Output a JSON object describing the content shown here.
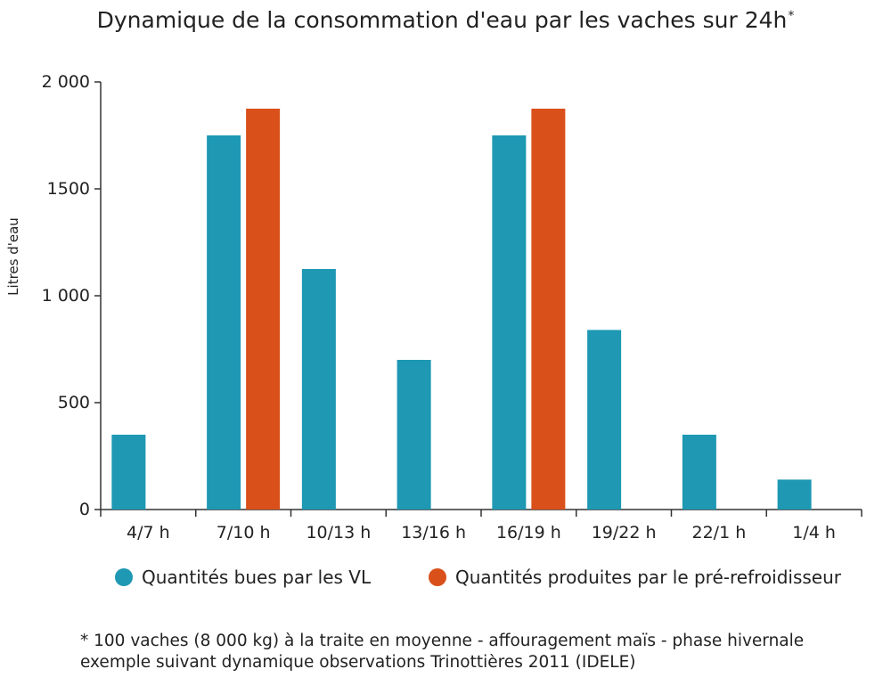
{
  "title": "Dynamique de la consommation d'eau par les vaches sur 24h",
  "title_mark": "*",
  "chart_data": {
    "type": "bar",
    "title": "Dynamique de la consommation d'eau par les vaches sur 24h*",
    "xlabel": "",
    "ylabel": "Litres d'eau",
    "ylim": [
      0,
      2000
    ],
    "yticks": [
      0,
      500,
      1000,
      1500,
      2000
    ],
    "ytick_labels": [
      "0",
      "500",
      "1 000",
      "1500",
      "2 000"
    ],
    "categories": [
      "4/7 h",
      "7/10 h",
      "10/13 h",
      "13/16 h",
      "16/19 h",
      "19/22 h",
      "22/1 h",
      "1/4 h"
    ],
    "series": [
      {
        "name": "Quantités bues par les VL",
        "color": "#1e98b3",
        "values": [
          350,
          1750,
          1125,
          700,
          1750,
          840,
          350,
          140
        ]
      },
      {
        "name": "Quantités produites par le pré-refroidisseur",
        "color": "#d9501a",
        "values": [
          null,
          1875,
          null,
          null,
          1875,
          null,
          null,
          null
        ]
      }
    ],
    "legend_position": "bottom",
    "grid": false
  },
  "footnote": {
    "line1": "* 100 vaches (8 000 kg) à la traite en moyenne - affouragement maïs - phase hivernale",
    "line2": "exemple suivant dynamique observations Trinottières 2011 (IDELE)"
  }
}
